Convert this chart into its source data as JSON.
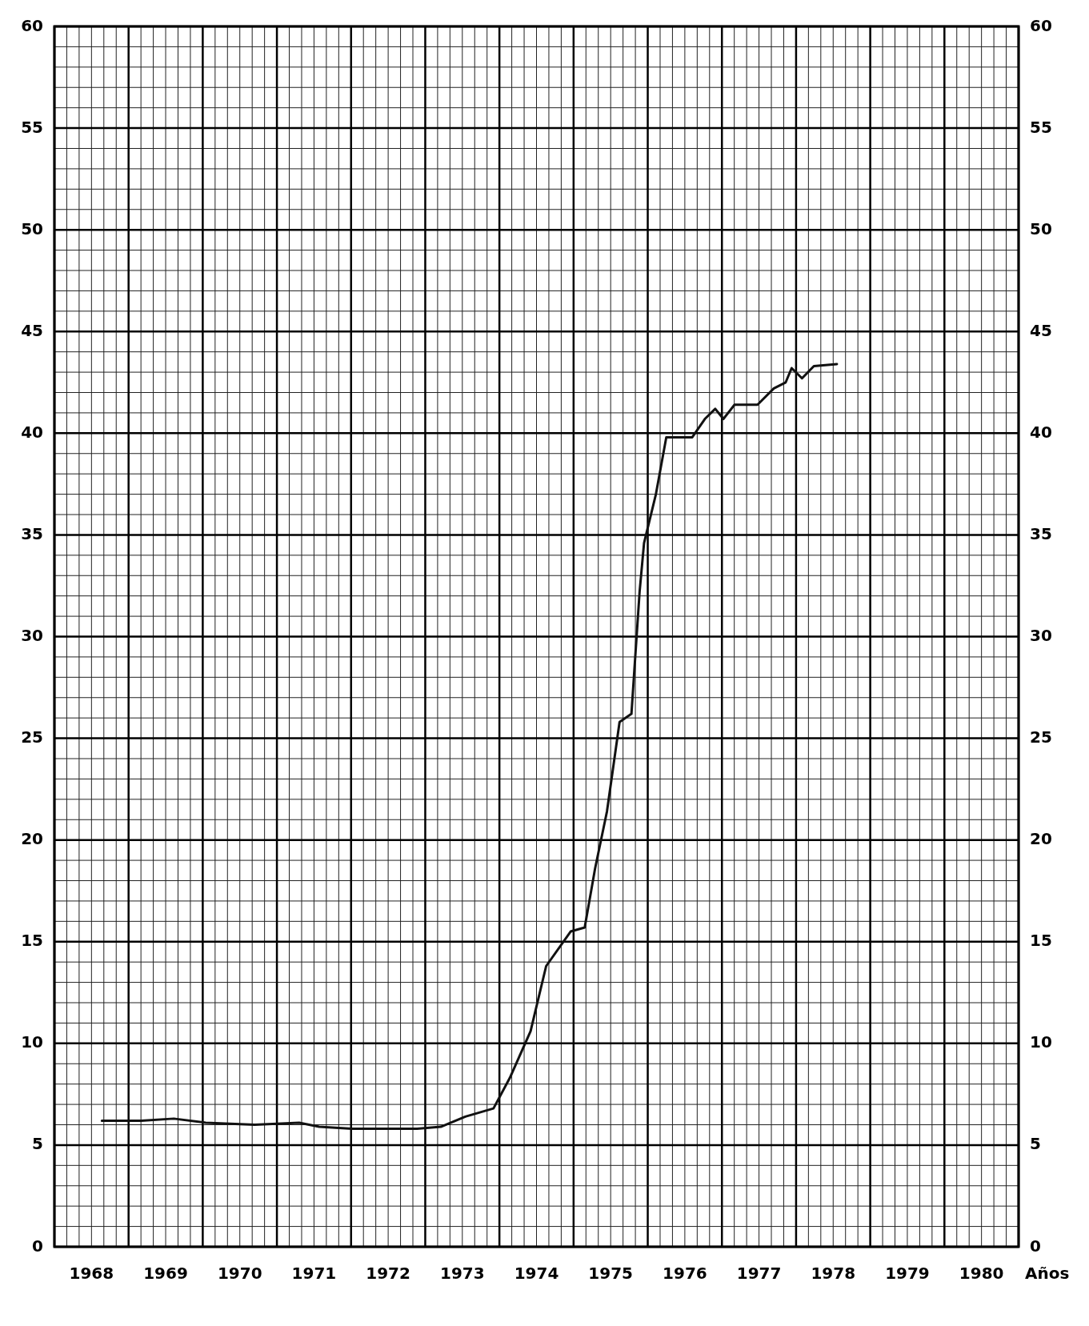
{
  "chart_data": {
    "type": "line",
    "xlabel": "Años",
    "xlim": [
      1968,
      1981
    ],
    "xticks": [
      {
        "value": 1968,
        "label": null
      },
      {
        "value": 1968.5,
        "label": "1968"
      },
      {
        "value": 1969,
        "label": null
      },
      {
        "value": 1969.5,
        "label": "1969"
      },
      {
        "value": 1970,
        "label": null
      },
      {
        "value": 1970.5,
        "label": "1970"
      },
      {
        "value": 1971,
        "label": null
      },
      {
        "value": 1971.5,
        "label": "1971"
      },
      {
        "value": 1972,
        "label": null
      },
      {
        "value": 1972.5,
        "label": "1972"
      },
      {
        "value": 1973,
        "label": null
      },
      {
        "value": 1973.5,
        "label": "1973"
      },
      {
        "value": 1974,
        "label": null
      },
      {
        "value": 1974.5,
        "label": "1974"
      },
      {
        "value": 1975,
        "label": null
      },
      {
        "value": 1975.5,
        "label": "1975"
      },
      {
        "value": 1976,
        "label": null
      },
      {
        "value": 1976.5,
        "label": "1976"
      },
      {
        "value": 1977,
        "label": null
      },
      {
        "value": 1977.5,
        "label": "1977"
      },
      {
        "value": 1978,
        "label": null
      },
      {
        "value": 1978.5,
        "label": "1978"
      },
      {
        "value": 1979,
        "label": null
      },
      {
        "value": 1979.5,
        "label": "1979"
      },
      {
        "value": 1980,
        "label": null
      },
      {
        "value": 1980.5,
        "label": "1980"
      },
      {
        "value": 1981,
        "label": null
      }
    ],
    "ylim": [
      0,
      60
    ],
    "yticks": [
      0,
      5,
      10,
      15,
      20,
      25,
      30,
      35,
      40,
      45,
      50,
      55,
      60
    ],
    "y2lim": [
      0,
      60
    ],
    "y2ticks": [
      0,
      5,
      10,
      15,
      20,
      25,
      30,
      35,
      40,
      45,
      50,
      55,
      60
    ],
    "grid": true,
    "marker": "none",
    "line_style": "solid",
    "series": [
      {
        "color": "#111111",
        "x": [
          1968.64,
          1969.17,
          1969.61,
          1970.04,
          1970.7,
          1971.3,
          1971.57,
          1972.01,
          1972.89,
          1973.21,
          1973.54,
          1973.92,
          1974.14,
          1974.42,
          1974.63,
          1974.96,
          1975.15,
          1975.29,
          1975.45,
          1975.62,
          1975.78,
          1975.89,
          1975.95,
          1976.11,
          1976.25,
          1976.6,
          1976.77,
          1976.91,
          1977.02,
          1977.17,
          1977.48,
          1977.7,
          1977.86,
          1977.94,
          1978.08,
          1978.24,
          1978.55
        ],
        "values": [
          6.2,
          6.2,
          6.3,
          6.1,
          6.0,
          6.1,
          5.9,
          5.8,
          5.8,
          5.9,
          6.4,
          6.8,
          8.3,
          10.6,
          13.8,
          15.5,
          15.7,
          18.6,
          21.4,
          25.8,
          26.2,
          32.2,
          34.6,
          37.0,
          39.8,
          39.8,
          40.7,
          41.2,
          40.7,
          41.4,
          41.4,
          42.2,
          42.5,
          43.2,
          42.7,
          43.3,
          43.4
        ]
      }
    ]
  }
}
